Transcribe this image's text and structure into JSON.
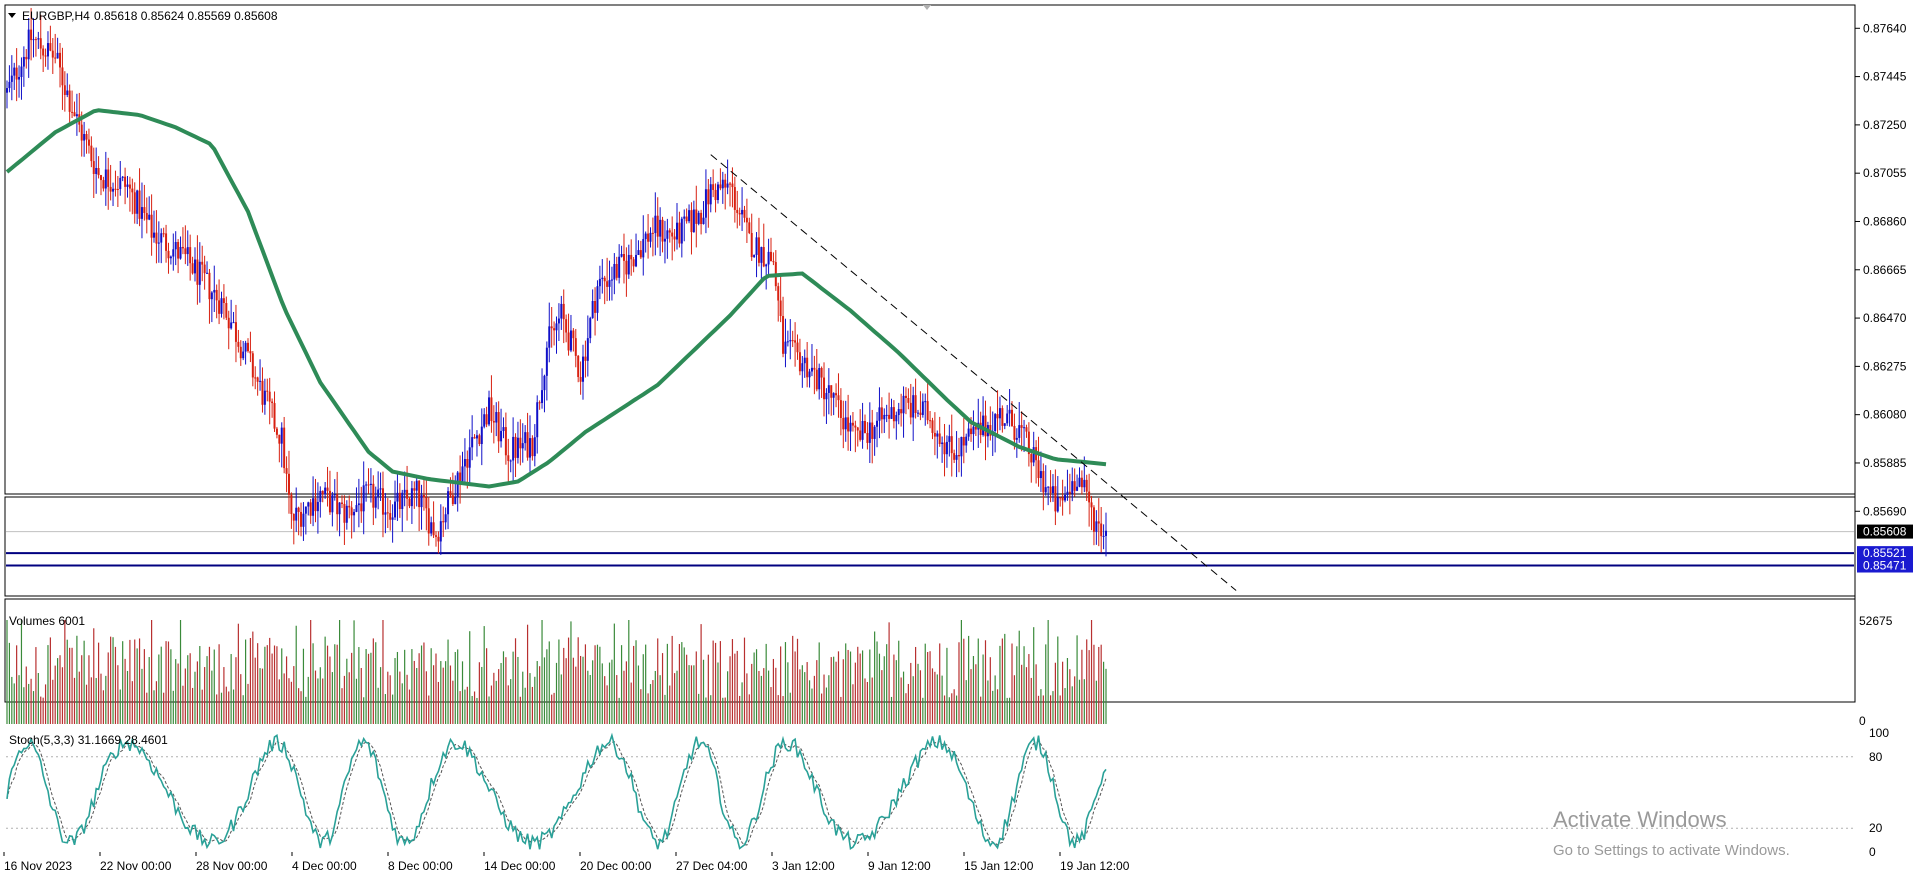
{
  "header": {
    "symbol": "EURGBP,H4",
    "ohlc": "0.85618 0.85624 0.85569 0.85608"
  },
  "price_axis": {
    "ticks": [
      "0.87640",
      "0.87445",
      "0.87250",
      "0.87055",
      "0.86860",
      "0.86665",
      "0.86470",
      "0.86275",
      "0.86080",
      "0.85885",
      "0.85690"
    ],
    "current_price": "0.85608",
    "support_upper": "0.85521",
    "support_lower": "0.85471"
  },
  "volumes": {
    "label": "Volumes 6001",
    "max_tick": "52675",
    "min_tick": "0"
  },
  "stoch": {
    "label": "Stoch(5,3,3) 31.1669 28.4601",
    "ticks": [
      "100",
      "80",
      "20",
      "0"
    ]
  },
  "time_axis": {
    "labels": [
      "16 Nov 2023",
      "22 Nov 00:00",
      "28 Nov 00:00",
      "4 Dec 00:00",
      "8 Dec 00:00",
      "14 Dec 00:00",
      "20 Dec 00:00",
      "27 Dec 04:00",
      "3 Jan 12:00",
      "9 Jan 12:00",
      "15 Jan 12:00",
      "19 Jan 12:00"
    ]
  },
  "watermark": {
    "line1": "Activate Windows",
    "line2": "Go to Settings to activate Windows."
  },
  "colors": {
    "bull": "#1010c8",
    "bear": "#d82010",
    "ma": "#2e8b57",
    "vol_bull": "#3a8a3a",
    "vol_bear": "#b83030",
    "stoch_main": "#2aa198",
    "support": "#000080"
  },
  "chart_data": {
    "type": "candlestick",
    "symbol": "EURGBP",
    "timeframe": "H4",
    "ylim": [
      0.8536,
      0.8773
    ],
    "price_path": [
      [
        0,
        0.8738
      ],
      [
        10,
        0.876
      ],
      [
        20,
        0.8752
      ],
      [
        30,
        0.8724
      ],
      [
        38,
        0.8705
      ],
      [
        50,
        0.87
      ],
      [
        60,
        0.8682
      ],
      [
        75,
        0.867
      ],
      [
        90,
        0.8652
      ],
      [
        100,
        0.863
      ],
      [
        114,
        0.8598
      ],
      [
        118,
        0.8565
      ],
      [
        130,
        0.8576
      ],
      [
        140,
        0.8568
      ],
      [
        150,
        0.8575
      ],
      [
        160,
        0.857
      ],
      [
        170,
        0.8576
      ],
      [
        178,
        0.856
      ],
      [
        190,
        0.859
      ],
      [
        200,
        0.861
      ],
      [
        208,
        0.8593
      ],
      [
        218,
        0.8597
      ],
      [
        224,
        0.8636
      ],
      [
        230,
        0.8648
      ],
      [
        238,
        0.8625
      ],
      [
        245,
        0.866
      ],
      [
        258,
        0.867
      ],
      [
        268,
        0.8683
      ],
      [
        278,
        0.868
      ],
      [
        288,
        0.869
      ],
      [
        292,
        0.8698
      ],
      [
        300,
        0.87
      ],
      [
        308,
        0.8678
      ],
      [
        318,
        0.867
      ],
      [
        322,
        0.8635
      ],
      [
        332,
        0.8628
      ],
      [
        342,
        0.8615
      ],
      [
        352,
        0.8598
      ],
      [
        362,
        0.8605
      ],
      [
        372,
        0.8612
      ],
      [
        382,
        0.8608
      ],
      [
        392,
        0.8593
      ],
      [
        402,
        0.86
      ],
      [
        412,
        0.8608
      ],
      [
        420,
        0.8602
      ],
      [
        428,
        0.8585
      ],
      [
        436,
        0.857
      ],
      [
        444,
        0.8584
      ],
      [
        452,
        0.8564
      ],
      [
        456,
        0.8561
      ]
    ],
    "ma_path": [
      [
        0,
        0.8706
      ],
      [
        20,
        0.8722
      ],
      [
        37,
        0.8731
      ],
      [
        55,
        0.8729
      ],
      [
        70,
        0.8724
      ],
      [
        85,
        0.8717
      ],
      [
        100,
        0.869
      ],
      [
        115,
        0.8651
      ],
      [
        130,
        0.8621
      ],
      [
        150,
        0.8593
      ],
      [
        160,
        0.8585
      ],
      [
        175,
        0.8582
      ],
      [
        200,
        0.8579
      ],
      [
        212,
        0.8581
      ],
      [
        225,
        0.8589
      ],
      [
        240,
        0.8601
      ],
      [
        270,
        0.862
      ],
      [
        300,
        0.8648
      ],
      [
        315,
        0.8664
      ],
      [
        330,
        0.8665
      ],
      [
        350,
        0.865
      ],
      [
        370,
        0.8633
      ],
      [
        390,
        0.8614
      ],
      [
        400,
        0.8605
      ],
      [
        420,
        0.8595
      ],
      [
        435,
        0.859
      ],
      [
        456,
        0.8588
      ]
    ],
    "trendline": [
      [
        292,
        0.8713
      ],
      [
        510,
        0.8537
      ]
    ],
    "support_levels": [
      0.85521,
      0.85471
    ],
    "last_close": 0.85608,
    "volume_max": 52675,
    "stoch_ref_levels": [
      80,
      20
    ]
  }
}
